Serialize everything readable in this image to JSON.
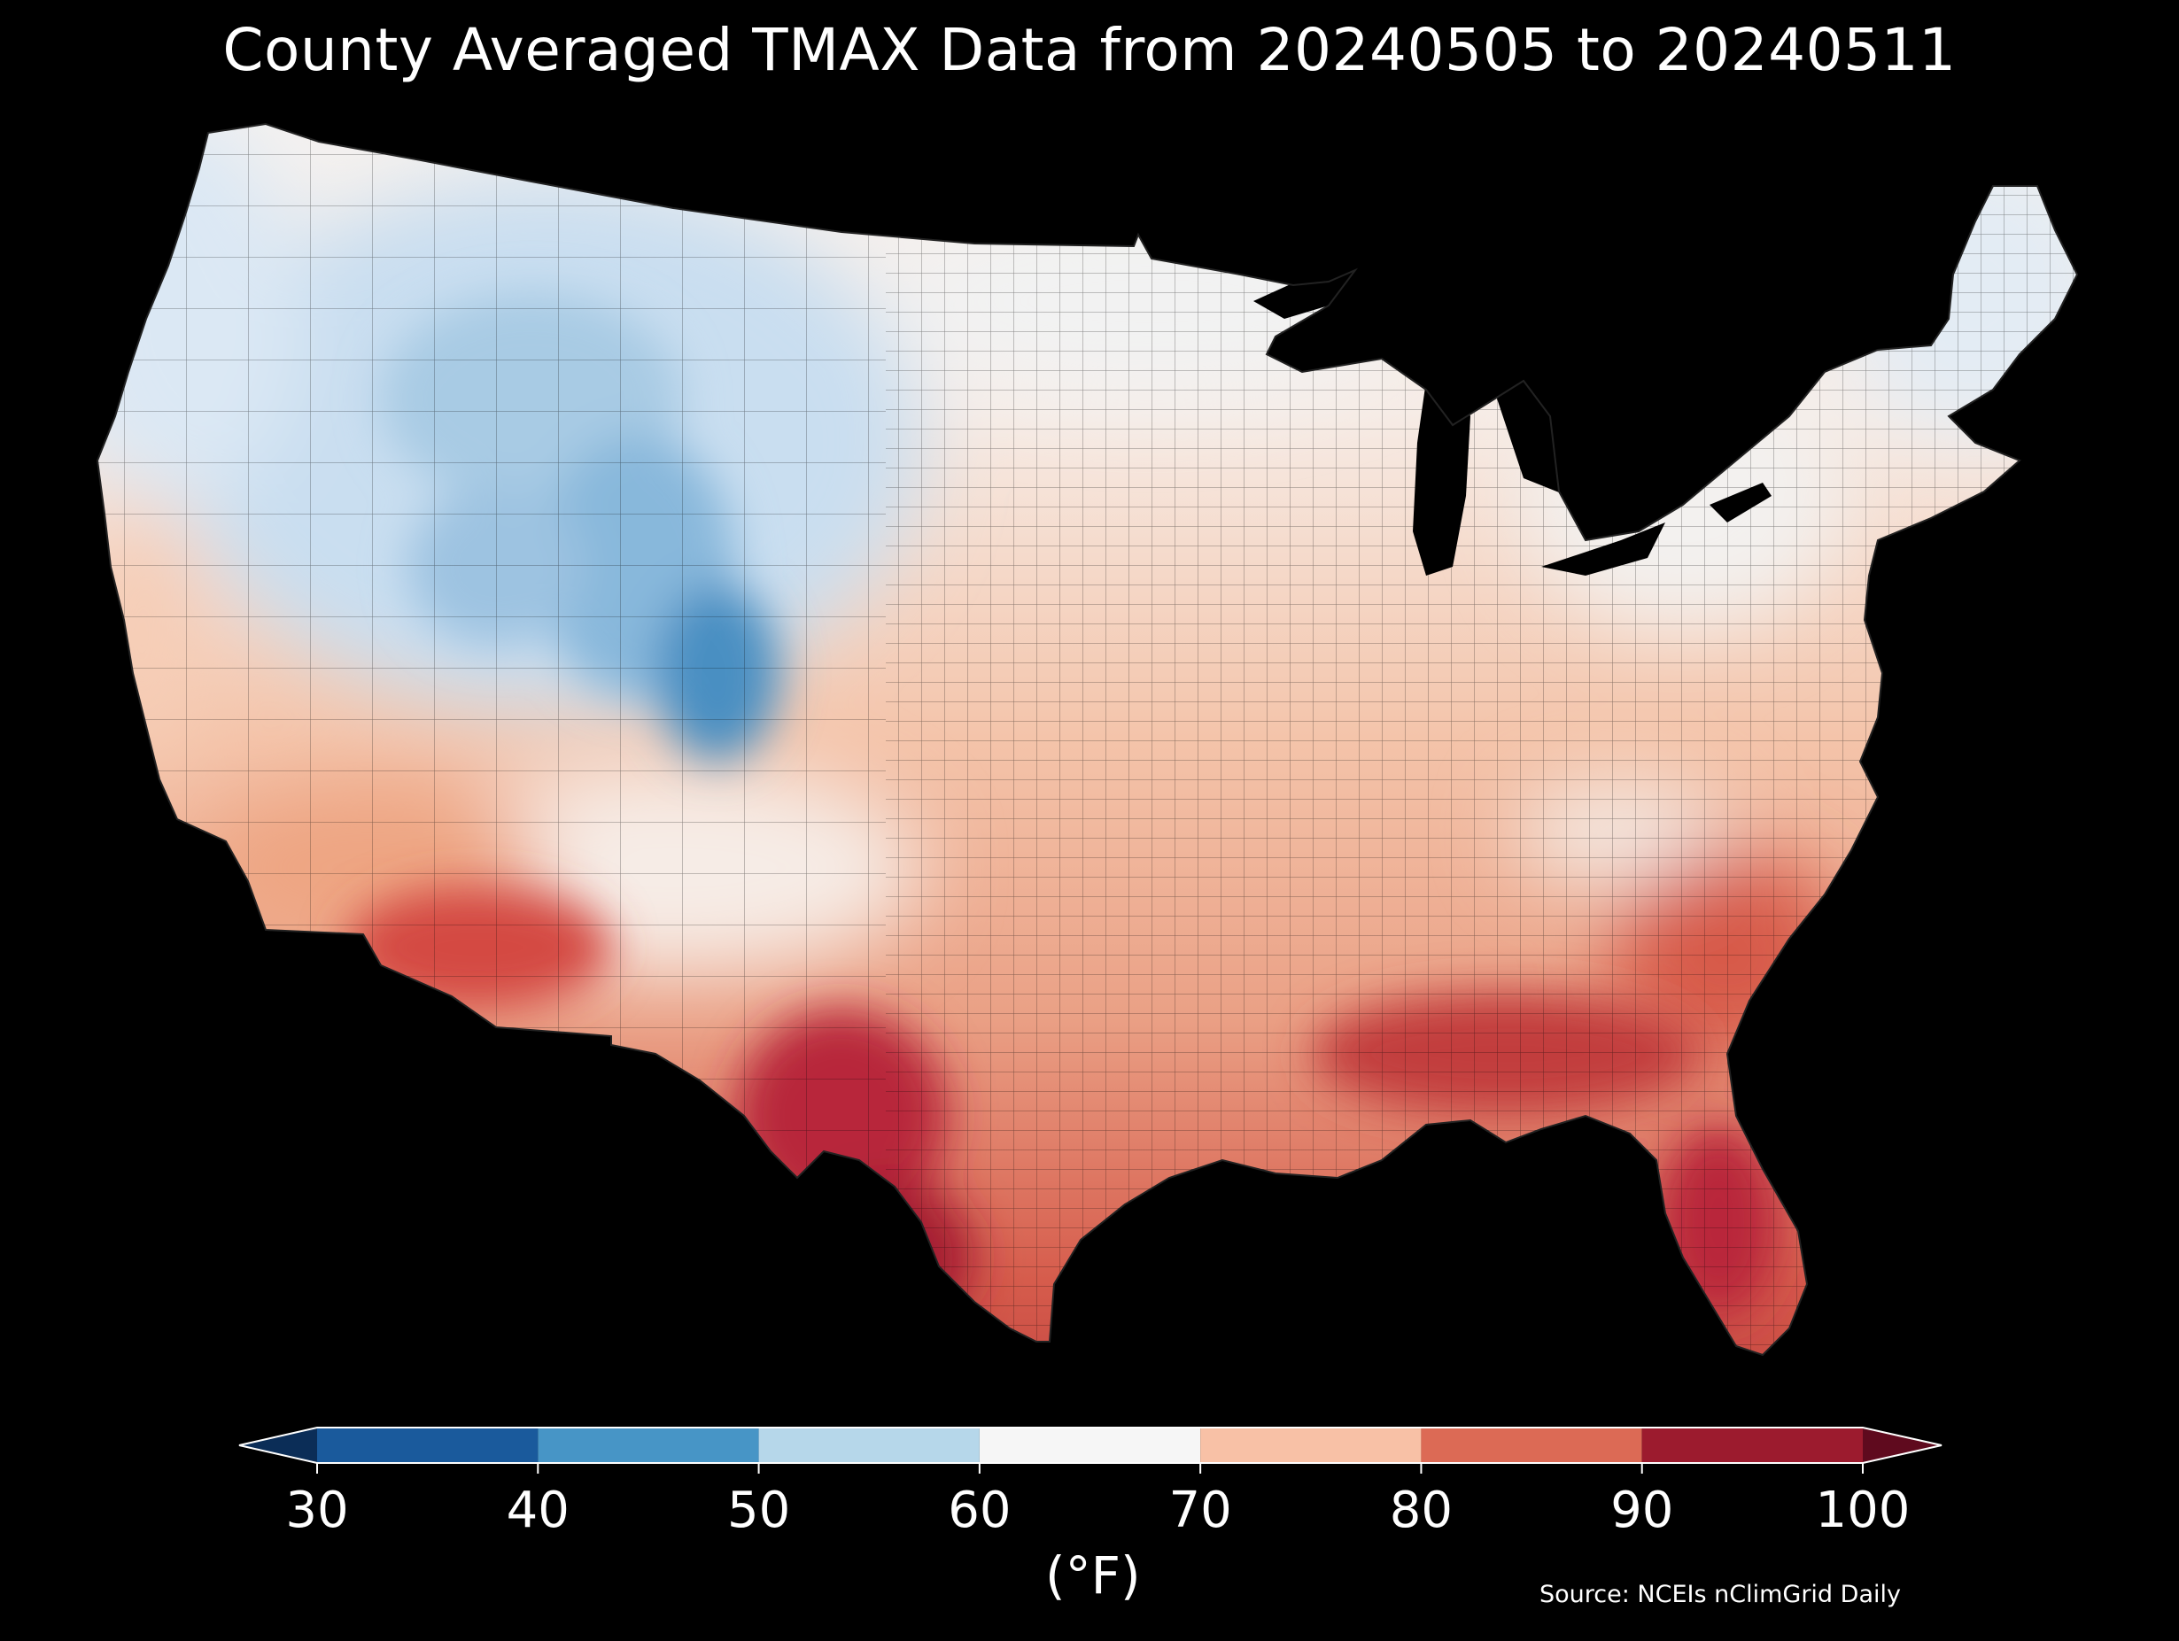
{
  "title": "County Averaged TMAX Data from 20240505 to 20240511",
  "colorbar": {
    "ticks": [
      "30",
      "40",
      "50",
      "60",
      "70",
      "80",
      "90",
      "100"
    ],
    "unit": "(°F)",
    "bins": [
      {
        "from": 30,
        "to": 40,
        "color": "#1a5a9c"
      },
      {
        "from": 40,
        "to": 50,
        "color": "#4795c6"
      },
      {
        "from": 50,
        "to": 60,
        "color": "#b6d7ea"
      },
      {
        "from": 60,
        "to": 70,
        "color": "#f6f6f6"
      },
      {
        "from": 70,
        "to": 80,
        "color": "#f8c1a6"
      },
      {
        "from": 80,
        "to": 90,
        "color": "#dc6a55"
      },
      {
        "from": 90,
        "to": 100,
        "color": "#9c1b2e"
      }
    ],
    "under_color": "#0b2d57",
    "over_color": "#5f0a1e"
  },
  "source": "Source: NCEIs nClimGrid Daily"
}
